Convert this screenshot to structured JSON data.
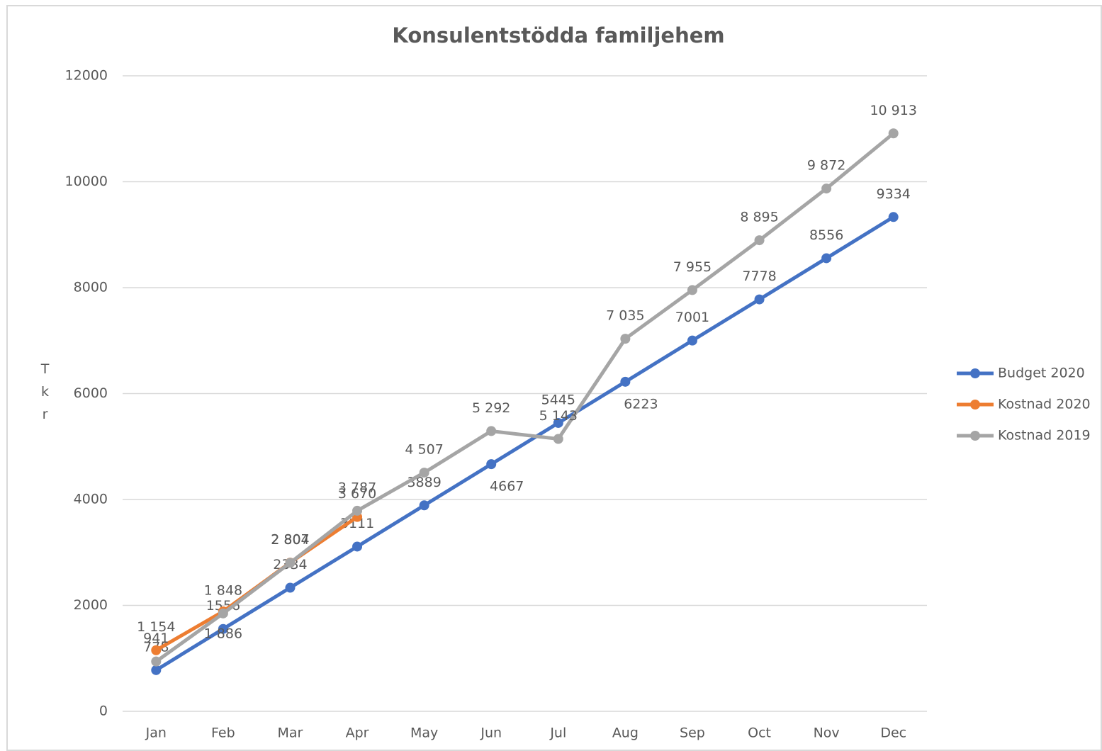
{
  "chart_data": {
    "type": "line",
    "title": "Konsulentstödda familjehem",
    "y_label": "Tkr",
    "categories": [
      "Jan",
      "Feb",
      "Mar",
      "Apr",
      "May",
      "Jun",
      "Jul",
      "Aug",
      "Sep",
      "Oct",
      "Nov",
      "Dec"
    ],
    "series": [
      {
        "name": "Budget 2020",
        "color": "#4472c4",
        "values": [
          778,
          1556,
          2334,
          3111,
          3889,
          4667,
          5445,
          6223,
          7001,
          7778,
          8556,
          9334
        ]
      },
      {
        "name": "Kostnad 2020",
        "color": "#ed7d31",
        "values": [
          1154,
          1886,
          2807,
          3670,
          null,
          null,
          null,
          null,
          null,
          null,
          null,
          null
        ],
        "value_labels": [
          "1 154",
          "1 886",
          "2 807",
          "3 670",
          null,
          null,
          null,
          null,
          null,
          null,
          null,
          null
        ]
      },
      {
        "name": "Kostnad 2019",
        "color": "#a5a5a5",
        "values": [
          941,
          1848,
          2804,
          3787,
          4507,
          5292,
          5143,
          7035,
          7955,
          8895,
          9872,
          10913
        ],
        "value_labels": [
          "941",
          "1 848",
          "2 804",
          "3 787",
          "4 507",
          "5 292",
          "5 143",
          "7 035",
          "7 955",
          "8 895",
          "9 872",
          "10 913"
        ]
      }
    ],
    "ylim": [
      0,
      12000
    ],
    "yticks": [
      0,
      2000,
      4000,
      6000,
      8000,
      10000,
      12000
    ],
    "grid": true,
    "legend": "right"
  }
}
